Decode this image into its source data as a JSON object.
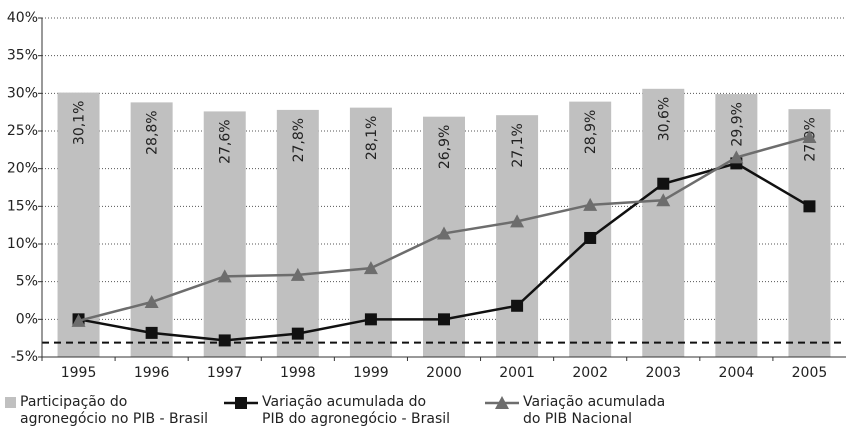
{
  "chart_data": {
    "type": "bar_line",
    "categories": [
      "1995",
      "1996",
      "1997",
      "1998",
      "1999",
      "2000",
      "2001",
      "2002",
      "2003",
      "2004",
      "2005"
    ],
    "series": [
      {
        "name": "Participação do\nagronegócio no PIB - Brasil",
        "type": "bar",
        "color": "#c0c0c0",
        "values": [
          30.1,
          28.8,
          27.6,
          27.8,
          28.1,
          26.9,
          27.1,
          28.9,
          30.6,
          29.9,
          27.9
        ],
        "value_labels": [
          "30,1%",
          "28,8%",
          "27,6%",
          "27,8%",
          "28,1%",
          "26,9%",
          "27,1%",
          "28,9%",
          "30,6%",
          "29,9%",
          "27,9%"
        ]
      },
      {
        "name": "Variação acumulada do\nPIB do agronegócio - Brasil",
        "type": "line",
        "marker": "square",
        "color": "#111111",
        "values": [
          0,
          -1.8,
          -2.8,
          -1.9,
          0,
          0,
          1.8,
          10.8,
          18.0,
          20.7,
          15.0
        ]
      },
      {
        "name": "Variação acumulada\ndo PIB Nacional",
        "type": "line",
        "marker": "triangle",
        "color": "#6d6d6d",
        "values": [
          -0.2,
          2.3,
          5.7,
          5.9,
          6.8,
          11.4,
          13.0,
          15.2,
          15.8,
          21.5,
          24.2
        ]
      }
    ],
    "reference_line": -3.1,
    "ylim": [
      -5,
      40
    ],
    "yticks": [
      {
        "value": -5,
        "label": "-5%"
      },
      {
        "value": 0,
        "label": "0%"
      },
      {
        "value": 5,
        "label": "5%"
      },
      {
        "value": 10,
        "label": "10%"
      },
      {
        "value": 15,
        "label": "15%"
      },
      {
        "value": 20,
        "label": "20%"
      },
      {
        "value": 25,
        "label": "25%"
      },
      {
        "value": 30,
        "label": "30%"
      },
      {
        "value": 35,
        "label": "35%"
      },
      {
        "value": 40,
        "label": "40%"
      }
    ],
    "grid": true
  }
}
